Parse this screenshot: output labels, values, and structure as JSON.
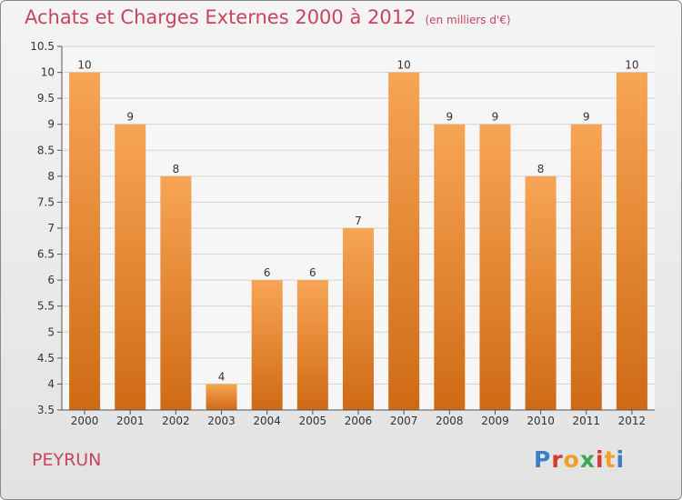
{
  "header": {
    "title": "Achats et Charges Externes 2000 à 2012",
    "subtitle": "(en milliers d'€)"
  },
  "footer": {
    "place": "PEYRUN",
    "logo": "Proxiti"
  },
  "colors": {
    "bar_light": "#f7a555",
    "bar_dark": "#cf6a14",
    "title": "#c8445f",
    "logo": [
      "#3a7ec4",
      "#d63a2f",
      "#f0a02a",
      "#3aa654",
      "#d63a2f",
      "#f0a02a",
      "#3a7ec4"
    ]
  },
  "chart_data": {
    "type": "bar",
    "title": "Achats et Charges Externes 2000 à 2012",
    "categories": [
      "2000",
      "2001",
      "2002",
      "2003",
      "2004",
      "2005",
      "2006",
      "2007",
      "2008",
      "2009",
      "2010",
      "2011",
      "2012"
    ],
    "values": [
      10,
      9,
      8,
      4,
      6,
      6,
      7,
      10,
      9,
      9,
      8,
      9,
      10
    ],
    "data_labels": [
      "10",
      "9",
      "8",
      "4",
      "6",
      "6",
      "7",
      "10",
      "9",
      "9",
      "8",
      "9",
      "10"
    ],
    "ylim": [
      3.5,
      10.5
    ],
    "yticks": [
      3.5,
      4,
      4.5,
      5,
      5.5,
      6,
      6.5,
      7,
      7.5,
      8,
      8.5,
      9,
      9.5,
      10,
      10.5
    ],
    "ytick_labels": [
      "3.5",
      "4",
      "4.5",
      "5",
      "5.5",
      "6",
      "6.5",
      "7",
      "7.5",
      "8",
      "8.5",
      "9",
      "9.5",
      "10",
      "10.5"
    ],
    "grid": true,
    "xlabel": "",
    "ylabel": ""
  }
}
